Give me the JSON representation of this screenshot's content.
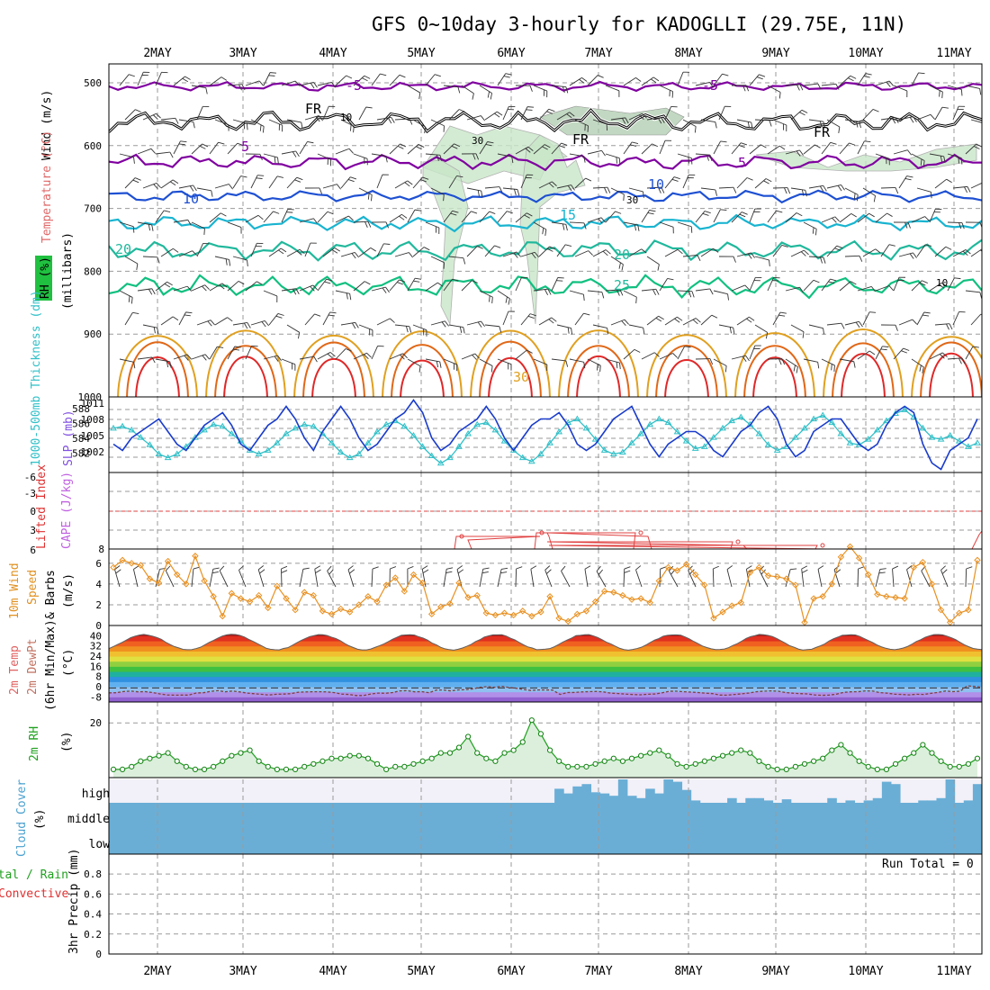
{
  "title": "GFS 0~10day 3-hourly for KADOGLLI (29.75E, 11N)",
  "dates": [
    "2MAY",
    "3MAY",
    "4MAY",
    "5MAY",
    "6MAY",
    "7MAY",
    "8MAY",
    "9MAY",
    "10MAY",
    "11MAY"
  ],
  "colors": {
    "purple": "#8000a0",
    "black": "#000000",
    "blue": "#1e50d2",
    "cyan": "#18b4d0",
    "teal": "#20b89c",
    "sea_green": "#10c080",
    "orange": "#e0a020",
    "dark_orange": "#e06818",
    "red": "#e02828",
    "rh_fill": "#c8e6c8",
    "cloud": "#6aaed6",
    "slp_line": "#1a3ccc",
    "thickness_line": "#30c0c8",
    "wind10": "#e89020"
  },
  "panels": {
    "upper_air": {
      "y_label_wind": "Wind (m/s)",
      "y_label_temp": "Temperature (°C)",
      "y_label_rh": "RH (%)",
      "y_label_unit": "(millibars)",
      "y_ticks": [
        "500",
        "600",
        "700",
        "800",
        "900",
        "1000"
      ],
      "contour_labels": [
        "-5",
        "-5",
        "FR",
        "FR",
        "FR",
        "5",
        "5",
        "10",
        "10",
        "15",
        "20",
        "20",
        "25",
        "30",
        "10",
        "30",
        "30",
        "10"
      ]
    },
    "pressure": {
      "label_thickness": "1000-500mb Thickness (dm)",
      "label_slp": "SLP (mb)",
      "left_ticks": [
        "588",
        "586",
        "584",
        "582"
      ],
      "right_ticks": [
        "1011",
        "1008",
        "1005",
        "1002"
      ]
    },
    "stability": {
      "label_li": "Lifted Index",
      "label_cape": "CAPE (J/kg)",
      "left_ticks": [
        "-6",
        "-3",
        "0",
        "3",
        "6"
      ],
      "right_ticks": [
        "8"
      ]
    },
    "wind10m": {
      "label": "10m Wind",
      "label2": "Speed",
      "label3": "& Barbs",
      "unit": "(m/s)",
      "y_ticks": [
        "0",
        "2",
        "4",
        "6"
      ]
    },
    "temp2m": {
      "label": "2m Temp",
      "label2": "2m DewPt",
      "label3": "(6hr Min/Max)",
      "unit": "(°C)",
      "y_ticks": [
        "40",
        "32",
        "24",
        "16",
        "8",
        "0",
        "-8"
      ]
    },
    "rh2m": {
      "label": "2m RH",
      "unit": "(%)",
      "y_ticks": [
        "20"
      ]
    },
    "cloud": {
      "label": "Cloud Cover",
      "unit": "(%)",
      "levels": [
        "high",
        "middle",
        "low"
      ]
    },
    "precip": {
      "label_total": "Total / Rain",
      "label_conv": "Convective",
      "label_axis": "3hr Precip (mm)",
      "run_total": "Run Total = 0",
      "y_ticks": [
        "0.8",
        "0.6",
        "0.4",
        "0.2",
        "0"
      ]
    }
  },
  "chart_data": [
    {
      "type": "line",
      "name": "1000-500mb Thickness / SLP",
      "series": [
        {
          "name": "SLP (mb)",
          "unit": "mb",
          "values": [
            1004,
            1003,
            1005,
            1006,
            1007,
            1008,
            1006,
            1004,
            1003,
            1005,
            1007,
            1008,
            1009,
            1007,
            1004,
            1003,
            1005,
            1007,
            1008,
            1010,
            1008,
            1005,
            1003,
            1006,
            1008,
            1010,
            1008,
            1005,
            1003,
            1004,
            1006,
            1008,
            1009,
            1011,
            1009,
            1005,
            1003,
            1004,
            1006,
            1007,
            1008,
            1010,
            1008,
            1005,
            1003,
            1005,
            1007,
            1008,
            1008,
            1009,
            1007,
            1004,
            1003,
            1004,
            1006,
            1008,
            1009,
            1010,
            1007,
            1004,
            1002,
            1004,
            1005,
            1006,
            1006,
            1005,
            1003,
            1002,
            1004,
            1006,
            1007,
            1009,
            1010,
            1008,
            1004,
            1002,
            1003,
            1006,
            1007,
            1008,
            1008,
            1006,
            1004,
            1003,
            1004,
            1007,
            1009,
            1010,
            1009,
            1004,
            1001,
            1000,
            1003,
            1004,
            1005,
            1008
          ]
        },
        {
          "name": "1000-500mb Thickness (dm)",
          "unit": "dm",
          "values": [
            585.6,
            585.8,
            585.4,
            584.6,
            583.8,
            582.8,
            582.4,
            582.8,
            583.6,
            584.6,
            585.4,
            586.0,
            585.8,
            585.0,
            584.2,
            583.2,
            582.8,
            583.2,
            584.0,
            585.0,
            585.6,
            586.0,
            585.8,
            585.0,
            584.0,
            583.0,
            582.4,
            582.8,
            584.0,
            585.2,
            586.0,
            586.4,
            585.8,
            584.8,
            583.6,
            582.6,
            581.8,
            582.4,
            583.6,
            585.0,
            586.0,
            586.2,
            585.4,
            584.2,
            583.2,
            582.4,
            582.0,
            582.8,
            584.0,
            585.2,
            586.2,
            586.6,
            585.6,
            584.4,
            583.2,
            582.8,
            583.0,
            584.0,
            585.0,
            586.0,
            586.6,
            586.2,
            585.2,
            584.2,
            583.4,
            583.6,
            584.6,
            585.6,
            586.4,
            586.8,
            586.0,
            585.0,
            583.8,
            583.2,
            583.6,
            584.6,
            585.6,
            586.6,
            587.0,
            586.2,
            585.0,
            584.0,
            583.8,
            584.4,
            585.4,
            586.4,
            587.2,
            587.6,
            586.8,
            585.6,
            584.6,
            584.4,
            584.8,
            584.2,
            583.6,
            584.0
          ]
        }
      ],
      "right_axis_ticks": [
        1011,
        1008,
        1005,
        1002
      ],
      "left_axis_ticks": [
        588,
        586,
        584,
        582
      ]
    },
    {
      "type": "line",
      "name": "10m Wind Speed",
      "unit": "m/s",
      "ylim": [
        0,
        7
      ],
      "values": [
        5.6,
        6.3,
        6.0,
        5.8,
        4.5,
        4.1,
        6.2,
        4.9,
        4.0,
        6.7,
        4.3,
        2.8,
        0.9,
        3.1,
        2.6,
        2.3,
        2.9,
        1.7,
        3.8,
        2.6,
        1.5,
        3.2,
        2.9,
        1.4,
        1.1,
        1.6,
        1.3,
        2.0,
        2.8,
        2.3,
        3.9,
        4.6,
        3.3,
        4.9,
        4.1,
        1.1,
        1.8,
        2.1,
        4.1,
        2.7,
        2.9,
        1.2,
        1.0,
        1.2,
        1.0,
        1.4,
        0.9,
        1.3,
        2.8,
        0.7,
        0.4,
        1.1,
        1.4,
        2.3,
        3.3,
        3.2,
        2.9,
        2.5,
        2.6,
        2.2,
        4.3,
        5.6,
        5.3,
        5.9,
        4.9,
        3.9,
        0.7,
        1.3,
        1.9,
        2.2,
        5.1,
        5.6,
        4.8,
        4.7,
        4.5,
        3.9,
        0.3,
        2.6,
        2.8,
        4.0,
        6.6,
        7.6,
        6.5,
        4.9,
        3.0,
        2.8,
        2.7,
        2.6,
        5.6,
        6.1,
        4.0,
        1.5,
        0.3,
        1.2,
        1.5,
        6.3
      ]
    },
    {
      "type": "line",
      "name": "2m RH",
      "unit": "%",
      "values": [
        3,
        3,
        4,
        6,
        7,
        8,
        9,
        6,
        4,
        3,
        3,
        4,
        6,
        8,
        9,
        10,
        6,
        4,
        3,
        3,
        3,
        4,
        5,
        6,
        7,
        7,
        8,
        8,
        7,
        5,
        3,
        4,
        4,
        5,
        6,
        7,
        9,
        9,
        11,
        15,
        9,
        7,
        6,
        9,
        10,
        13,
        21,
        16,
        10,
        6,
        4,
        4,
        4,
        5,
        6,
        7,
        6,
        7,
        8,
        9,
        10,
        8,
        5,
        4,
        5,
        6,
        7,
        8,
        9,
        10,
        9,
        6,
        4,
        3,
        3,
        4,
        5,
        6,
        7,
        10,
        12,
        9,
        6,
        4,
        3,
        3,
        5,
        7,
        9,
        12,
        9,
        6,
        4,
        4,
        5,
        7
      ]
    },
    {
      "type": "bar",
      "name": "3hr Precip",
      "unit": "mm",
      "ylim": [
        0,
        0.9
      ],
      "values": [],
      "run_total": "Run Total = 0"
    }
  ]
}
